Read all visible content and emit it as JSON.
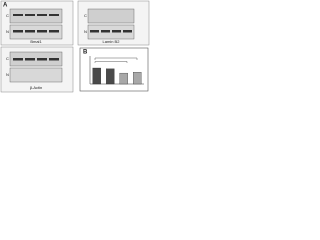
{
  "panels": {
    "a": {
      "label": "A",
      "lanes": [
        "C",
        "N"
      ],
      "blots": [
        "Bmal1",
        "Lamin B2",
        "β-Actin"
      ]
    },
    "b": {
      "label": "B",
      "chart_data": {
        "type": "bar",
        "values": [
          1.0,
          0.95,
          0.68,
          0.74
        ],
        "colors": [
          "#4a4a4a",
          "#4a4a4a",
          "#a8a8a8",
          "#a8a8a8"
        ],
        "ylim": [
          0,
          1.5
        ]
      }
    }
  }
}
